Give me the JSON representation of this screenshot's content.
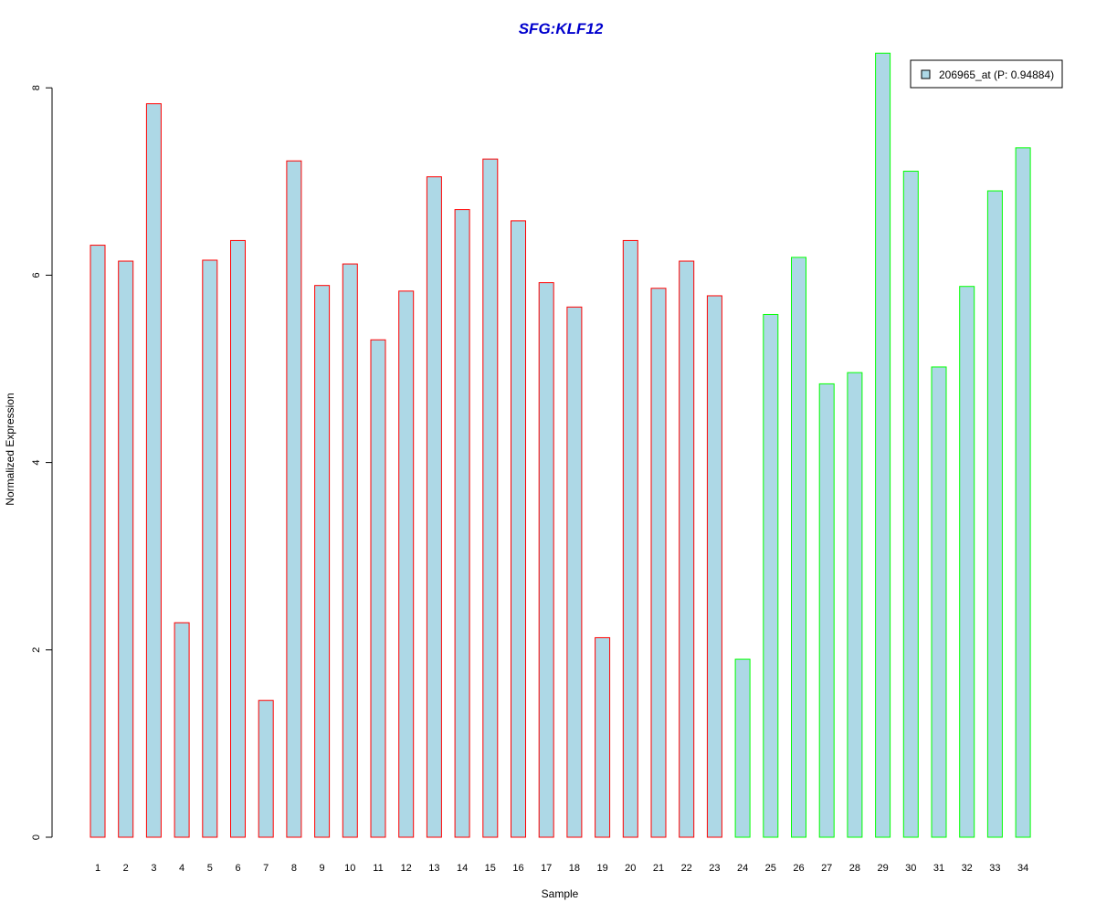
{
  "chart_data": {
    "type": "bar",
    "title": "SFG:KLF12",
    "xlabel": "Sample",
    "ylabel": "Normalized Expression",
    "ylim": [
      0,
      8.4
    ],
    "yticks": [
      0,
      2,
      4,
      6,
      8
    ],
    "categories": [
      "1",
      "2",
      "3",
      "4",
      "5",
      "6",
      "7",
      "8",
      "9",
      "10",
      "11",
      "12",
      "13",
      "14",
      "15",
      "16",
      "17",
      "18",
      "19",
      "20",
      "21",
      "22",
      "23",
      "24",
      "25",
      "26",
      "27",
      "28",
      "29",
      "30",
      "31",
      "32",
      "33",
      "34"
    ],
    "series": [
      {
        "name": "206965_at (P: 0.94884)",
        "values": [
          6.32,
          6.15,
          7.83,
          2.29,
          6.16,
          6.37,
          1.46,
          7.22,
          5.89,
          6.12,
          5.31,
          5.83,
          7.05,
          6.7,
          7.24,
          6.58,
          5.92,
          5.66,
          2.13,
          6.37,
          5.86,
          6.15,
          5.78,
          1.9,
          5.58,
          6.19,
          4.84,
          4.96,
          8.37,
          7.11,
          5.02,
          5.88,
          6.9,
          7.36
        ],
        "groups": [
          "A",
          "A",
          "A",
          "A",
          "A",
          "A",
          "A",
          "A",
          "A",
          "A",
          "A",
          "A",
          "A",
          "A",
          "A",
          "A",
          "A",
          "A",
          "A",
          "A",
          "A",
          "A",
          "A",
          "B",
          "B",
          "B",
          "B",
          "B",
          "B",
          "B",
          "B",
          "B",
          "B",
          "B"
        ]
      }
    ],
    "fill_color": "#add8e6",
    "border_colors": {
      "A": "#ff0000",
      "B": "#00ff00"
    },
    "title_color": "#0000cd",
    "legend_position": "top-right",
    "grid": false
  }
}
